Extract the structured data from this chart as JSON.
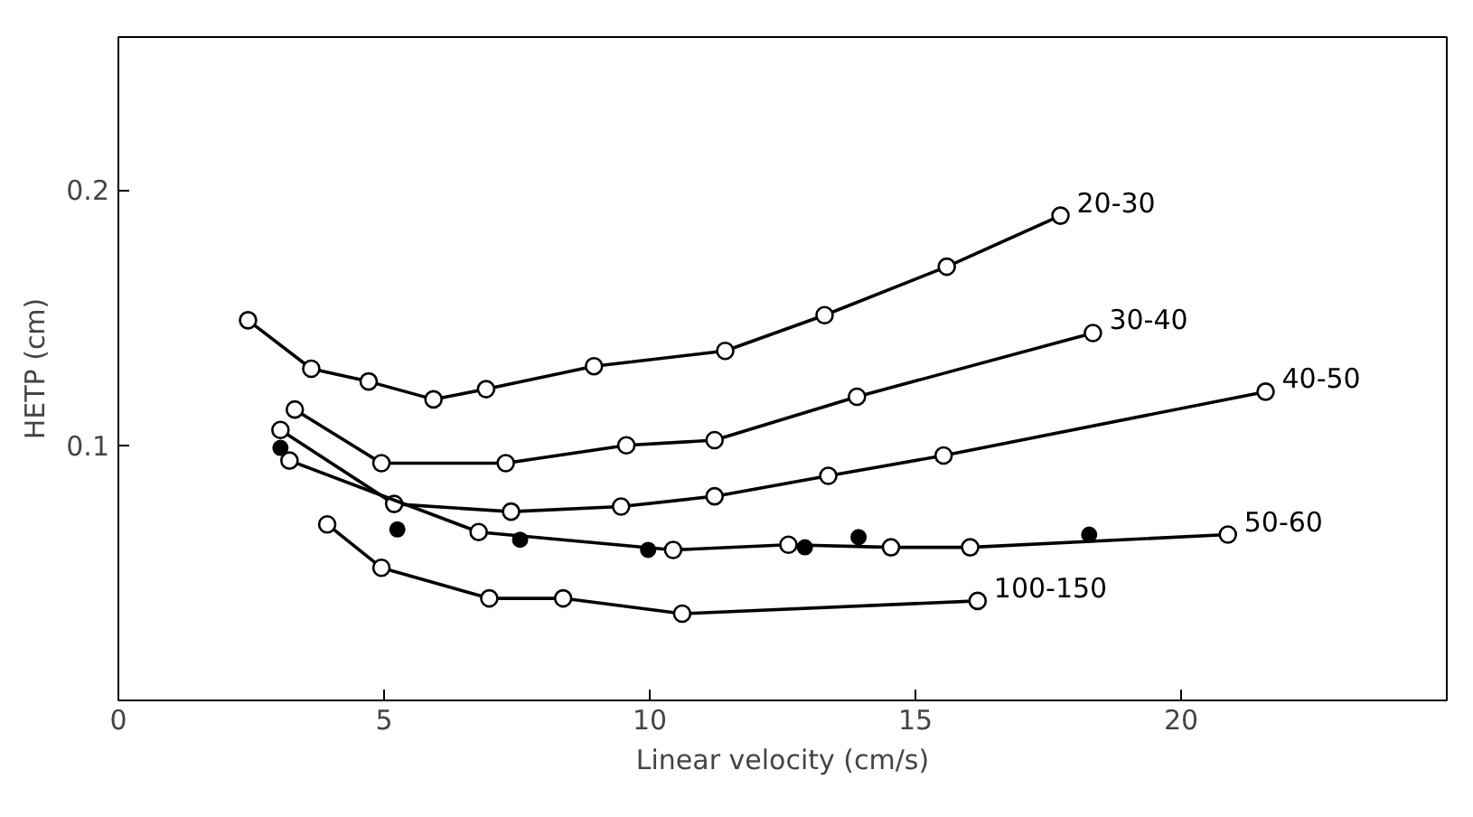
{
  "chart_data": {
    "type": "line",
    "xlabel": "Linear velocity (cm/s)",
    "ylabel": "HETP (cm)",
    "xlim": [
      0,
      25
    ],
    "ylim": [
      0,
      0.26
    ],
    "xticks": [
      0,
      5,
      10,
      15,
      20
    ],
    "yticks": [
      0.1,
      0.2
    ],
    "grid": false,
    "marker": "circle",
    "series": [
      {
        "name": "20-30",
        "color": "#000000",
        "x": [
          2.44,
          3.63,
          4.71,
          5.93,
          6.92,
          8.95,
          11.42,
          13.29,
          15.59,
          17.73
        ],
        "values": [
          0.149,
          0.13,
          0.125,
          0.118,
          0.122,
          0.131,
          0.137,
          0.151,
          0.17,
          0.19
        ]
      },
      {
        "name": "30-40",
        "color": "#000000",
        "x": [
          3.32,
          4.95,
          7.29,
          9.56,
          11.22,
          13.9,
          18.34
        ],
        "values": [
          0.114,
          0.093,
          0.093,
          0.1,
          0.102,
          0.119,
          0.144
        ]
      },
      {
        "name": "40-50",
        "color": "#000000",
        "x": [
          3.05,
          5.19,
          7.39,
          9.46,
          11.22,
          13.36,
          15.53,
          21.59
        ],
        "values": [
          0.106,
          0.077,
          0.074,
          0.076,
          0.08,
          0.088,
          0.096,
          0.121
        ]
      },
      {
        "name": "50-60",
        "color": "#000000",
        "x": [
          3.22,
          6.78,
          10.44,
          12.61,
          14.54,
          16.03,
          20.88
        ],
        "values": [
          0.094,
          0.066,
          0.059,
          0.061,
          0.06,
          0.06,
          0.065
        ]
      },
      {
        "type": "scatter",
        "color": "#000000",
        "x": [
          3.05,
          5.25,
          7.56,
          9.97,
          12.92,
          13.93,
          18.27
        ],
        "values": [
          0.099,
          0.067,
          0.063,
          0.059,
          0.06,
          0.064,
          0.065
        ]
      },
      {
        "name": "100-150",
        "color": "#000000",
        "x": [
          3.93,
          4.95,
          6.98,
          8.37,
          10.61,
          16.17
        ],
        "values": [
          0.069,
          0.052,
          0.04,
          0.04,
          0.034,
          0.039
        ]
      }
    ]
  }
}
